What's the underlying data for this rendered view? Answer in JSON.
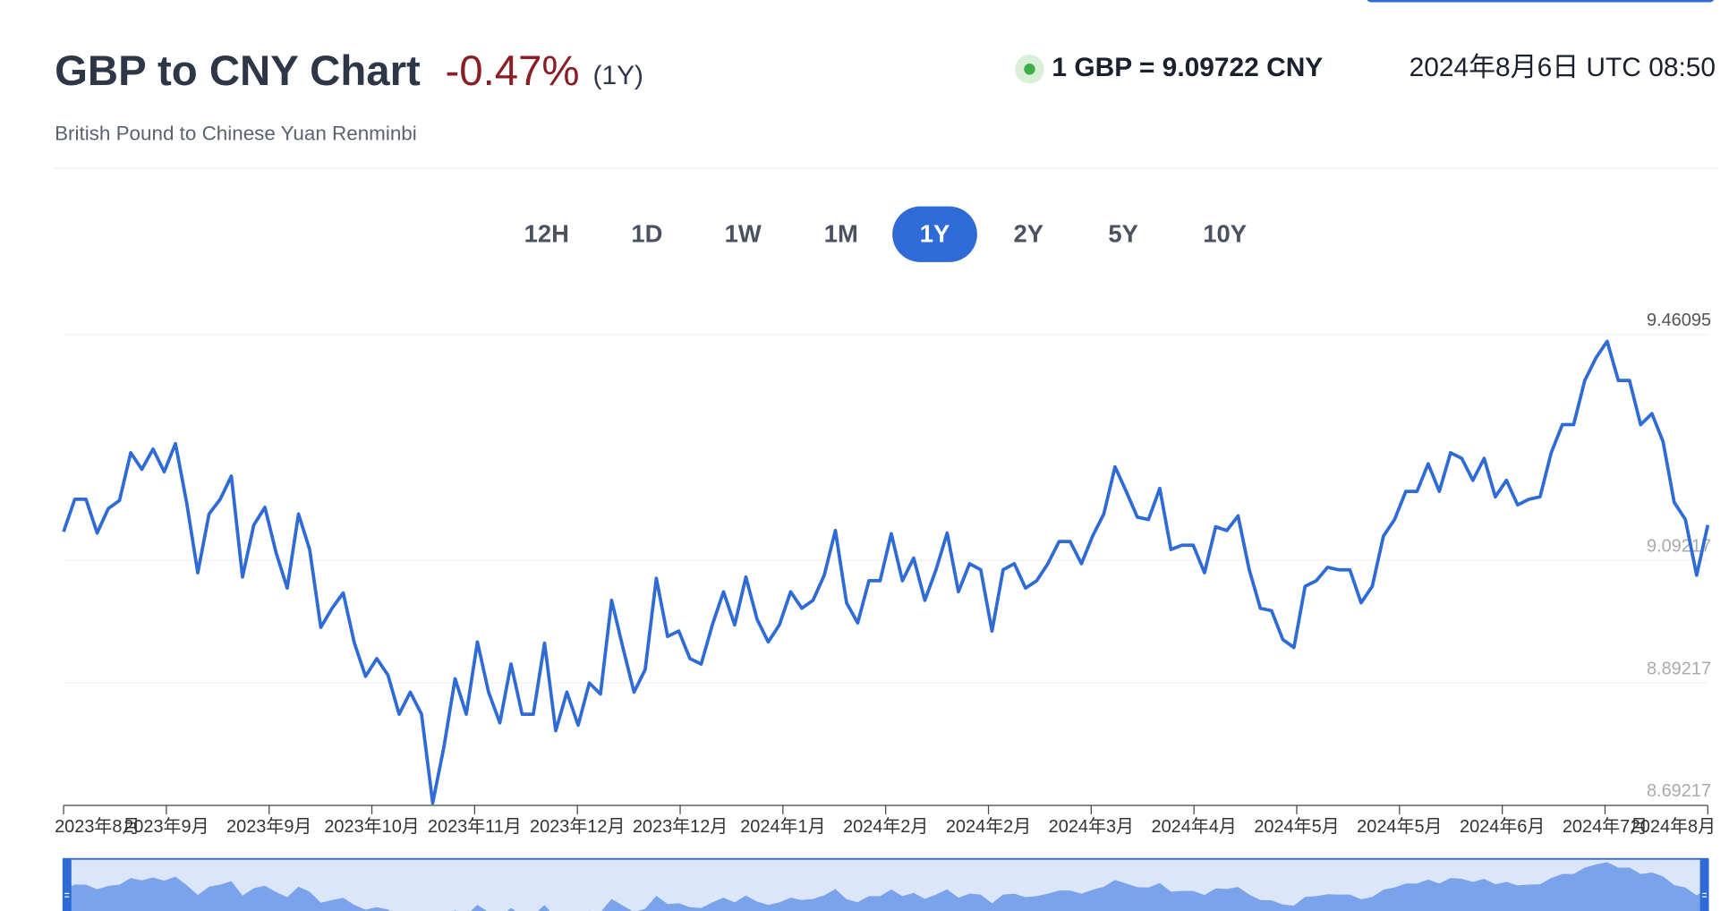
{
  "header": {
    "title": "GBP to CNY Chart",
    "change": "-0.47%",
    "period": "(1Y)",
    "rate": "1 GBP = 9.09722 CNY",
    "timestamp": "2024年8月6日 UTC 08:50",
    "subtitle": "British Pound to Chinese Yuan Renminbi"
  },
  "tabs": [
    "12H",
    "1D",
    "1W",
    "1M",
    "1Y",
    "2Y",
    "5Y",
    "10Y"
  ],
  "selected_tab": "1Y",
  "chart_data": {
    "type": "line",
    "xtick_labels": [
      "2023年8月",
      "2023年9月",
      "2023年9月",
      "2023年10月",
      "2023年11月",
      "2023年12月",
      "2023年12月",
      "2024年1月",
      "2024年2月",
      "2024年2月",
      "2024年3月",
      "2024年4月",
      "2024年5月",
      "2024年5月",
      "2024年6月",
      "2024年7月",
      "2024年8月"
    ],
    "series": [
      {
        "color": "#2f6bd6",
        "values": [
          9.139,
          9.192,
          9.192,
          9.137,
          9.177,
          9.19,
          9.268,
          9.241,
          9.274,
          9.237,
          9.283,
          9.187,
          9.072,
          9.168,
          9.192,
          9.23,
          9.065,
          9.15,
          9.179,
          9.105,
          9.047,
          9.168,
          9.11,
          8.983,
          9.014,
          9.039,
          8.957,
          8.903,
          8.932,
          8.905,
          8.841,
          8.877,
          8.841,
          8.696,
          8.787,
          8.899,
          8.841,
          8.959,
          8.877,
          8.827,
          8.923,
          8.841,
          8.841,
          8.957,
          8.814,
          8.877,
          8.823,
          8.892,
          8.874,
          9.027,
          8.95,
          8.877,
          8.914,
          9.063,
          8.968,
          8.977,
          8.932,
          8.923,
          8.987,
          9.041,
          8.987,
          9.065,
          8.996,
          8.959,
          8.987,
          9.041,
          9.014,
          9.027,
          9.068,
          9.141,
          9.023,
          8.99,
          9.059,
          9.059,
          9.136,
          9.059,
          9.096,
          9.027,
          9.077,
          9.137,
          9.041,
          9.087,
          9.077,
          8.977,
          9.077,
          9.087,
          9.047,
          9.059,
          9.087,
          9.123,
          9.123,
          9.087,
          9.132,
          9.168,
          9.245,
          9.205,
          9.163,
          9.159,
          9.21,
          9.11,
          9.117,
          9.117,
          9.072,
          9.147,
          9.141,
          9.165,
          9.077,
          9.014,
          9.01,
          8.963,
          8.95,
          9.05,
          9.059,
          9.081,
          9.077,
          9.077,
          9.023,
          9.05,
          9.132,
          9.159,
          9.205,
          9.205,
          9.25,
          9.205,
          9.268,
          9.259,
          9.223,
          9.259,
          9.196,
          9.223,
          9.183,
          9.192,
          9.196,
          9.268,
          9.314,
          9.314,
          9.386,
          9.423,
          9.45,
          9.386,
          9.386,
          9.314,
          9.332,
          9.286,
          9.187,
          9.159,
          9.068,
          9.15
        ]
      }
    ],
    "ylim": [
      8.69217,
      9.46095
    ],
    "yticks": [
      8.69217,
      8.89217,
      9.09217,
      9.46095
    ],
    "grid": true
  }
}
